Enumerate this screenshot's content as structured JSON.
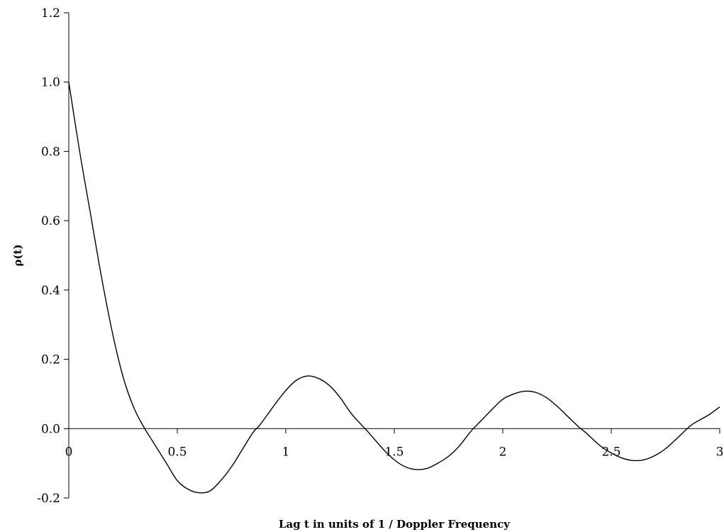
{
  "chart_data": {
    "type": "line",
    "title": "",
    "xlabel": "Lag t in units of 1 / Doppler Frequency",
    "ylabel": "ρ(t)",
    "xlim": [
      0,
      3
    ],
    "ylim": [
      -0.2,
      1.2
    ],
    "x_ticks": [
      "0",
      "0.5",
      "1",
      "1.5",
      "2",
      "2.5",
      "3"
    ],
    "x_tick_values": [
      0,
      0.5,
      1,
      1.5,
      2,
      2.5,
      3
    ],
    "y_ticks": [
      "-0.2",
      "0.0",
      "0.2",
      "0.4",
      "0.6",
      "0.8",
      "1.0",
      "1.2"
    ],
    "y_tick_values": [
      -0.2,
      0,
      0.2,
      0.4,
      0.6,
      0.8,
      1.0,
      1.2
    ],
    "grid": false,
    "legend": "none",
    "series": [
      {
        "x": [
          0,
          0.05,
          0.1,
          0.15,
          0.2,
          0.25,
          0.3,
          0.35,
          0.38,
          0.45,
          0.5,
          0.55,
          0.6,
          0.65,
          0.7,
          0.75,
          0.8,
          0.85,
          0.88,
          0.95,
          1.0,
          1.05,
          1.1,
          1.15,
          1.2,
          1.25,
          1.3,
          1.35,
          1.38,
          1.45,
          1.5,
          1.55,
          1.6,
          1.65,
          1.7,
          1.75,
          1.8,
          1.85,
          1.88,
          1.95,
          2.0,
          2.05,
          2.1,
          2.15,
          2.2,
          2.25,
          2.3,
          2.35,
          2.38,
          2.45,
          2.5,
          2.55,
          2.6,
          2.65,
          2.7,
          2.75,
          2.8,
          2.85,
          2.88,
          2.95,
          3.0
        ],
        "y": [
          1.0,
          0.8,
          0.62,
          0.44,
          0.28,
          0.15,
          0.06,
          0.0,
          -0.03,
          -0.1,
          -0.15,
          -0.175,
          -0.185,
          -0.18,
          -0.15,
          -0.11,
          -0.06,
          -0.01,
          0.01,
          0.07,
          0.11,
          0.14,
          0.152,
          0.145,
          0.125,
          0.09,
          0.045,
          0.01,
          -0.01,
          -0.06,
          -0.09,
          -0.11,
          -0.118,
          -0.115,
          -0.1,
          -0.08,
          -0.05,
          -0.01,
          0.01,
          0.055,
          0.085,
          0.1,
          0.108,
          0.105,
          0.09,
          0.065,
          0.035,
          0.005,
          -0.01,
          -0.05,
          -0.07,
          -0.085,
          -0.092,
          -0.09,
          -0.078,
          -0.058,
          -0.03,
          0.0,
          0.015,
          0.04,
          0.063
        ],
        "color": "#000000"
      }
    ]
  }
}
